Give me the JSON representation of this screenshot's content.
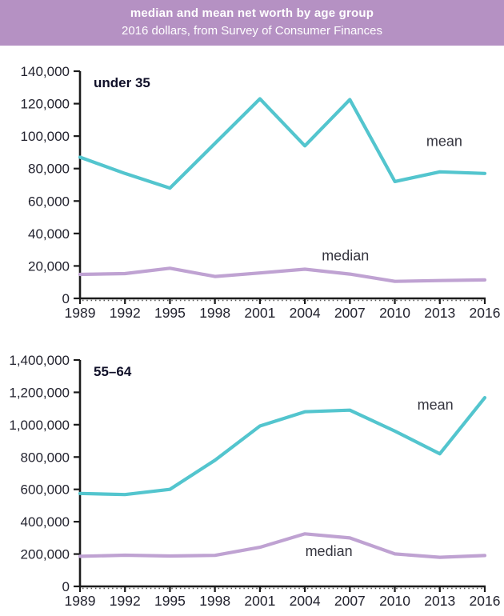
{
  "header": {
    "title": "median and mean net worth by age group",
    "subtitle": "2016 dollars, from Survey of Consumer Finances"
  },
  "colors": {
    "header_bg": "#b591c3",
    "header_text": "#ffffff",
    "mean_line": "#53c5ce",
    "median_line": "#bfa2d2",
    "axis": "#1b1b1b",
    "tick_text": "#23232f",
    "annotation_text": "#35353f",
    "chart_title_text": "#0f0f28"
  },
  "chart_data": [
    {
      "type": "line",
      "title": "under 35",
      "x": [
        1989,
        1992,
        1995,
        1998,
        2001,
        2004,
        2007,
        2010,
        2013,
        2016
      ],
      "xlabel": "",
      "ylabel": "",
      "ylim": [
        0,
        140000
      ],
      "ytick_step": 20000,
      "grid": false,
      "legend_position": "inline-annotations",
      "series": [
        {
          "name": "mean",
          "color_key": "mean_line",
          "values": [
            87000,
            77000,
            68000,
            95500,
            123000,
            94000,
            122500,
            72000,
            78000,
            77000
          ]
        },
        {
          "name": "median",
          "color_key": "median_line",
          "values": [
            14800,
            15300,
            18600,
            13500,
            15700,
            18000,
            15000,
            10500,
            11000,
            11400
          ]
        }
      ],
      "annotations": [
        {
          "text": "mean",
          "year": 2013.3,
          "value": 94000
        },
        {
          "text": "median",
          "year": 2006.7,
          "value": 23500
        }
      ]
    },
    {
      "type": "line",
      "title": "55–64",
      "x": [
        1989,
        1992,
        1995,
        1998,
        2001,
        2004,
        2007,
        2010,
        2013,
        2016
      ],
      "xlabel": "",
      "ylabel": "",
      "ylim": [
        0,
        1400000
      ],
      "ytick_step": 200000,
      "grid": false,
      "legend_position": "inline-annotations",
      "series": [
        {
          "name": "mean",
          "color_key": "mean_line",
          "values": [
            575000,
            568000,
            600000,
            780000,
            992000,
            1080000,
            1090000,
            960000,
            820000,
            1167000
          ]
        },
        {
          "name": "median",
          "color_key": "median_line",
          "values": [
            186000,
            193000,
            188000,
            192000,
            242000,
            325000,
            300000,
            201000,
            180000,
            191000
          ]
        }
      ],
      "annotations": [
        {
          "text": "mean",
          "year": 2012.7,
          "value": 1093000
        },
        {
          "text": "median",
          "year": 2005.6,
          "value": 188000
        }
      ]
    }
  ]
}
